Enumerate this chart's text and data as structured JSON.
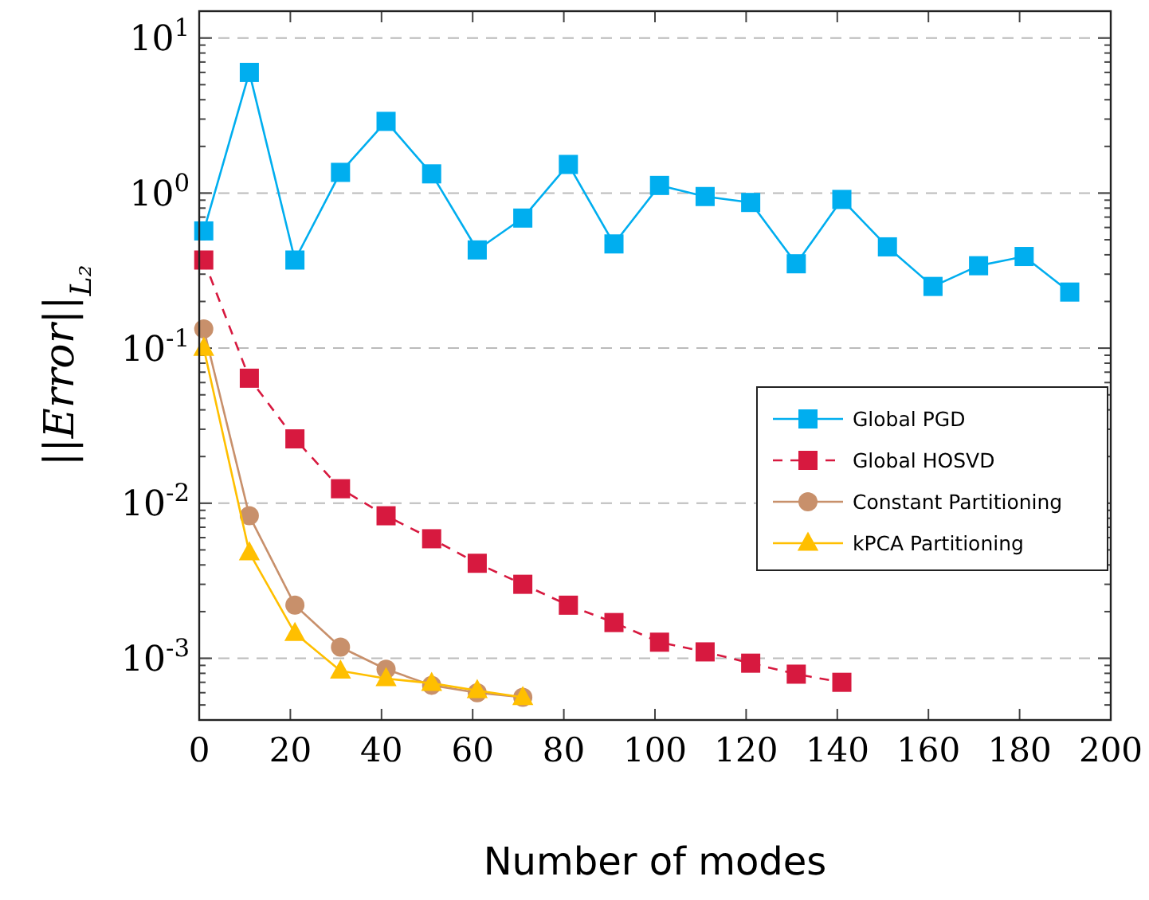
{
  "chart_data": {
    "type": "line",
    "xlabel": "Number of modes",
    "ylabel": "||Error||$_{L₂}$",
    "log": "y",
    "grid": "y",
    "legend": "right",
    "xlim": [
      0,
      200
    ],
    "xticks": [
      0,
      20,
      40,
      60,
      80,
      100,
      120,
      140,
      160,
      180,
      200
    ],
    "ylim": [
      0.0004,
      14.9
    ],
    "yticks": [
      {
        "value": 0.0004,
        "label": null
      },
      {
        "value": 0.0005,
        "label": null
      },
      {
        "value": 0.0006,
        "label": null
      },
      {
        "value": 0.0007,
        "label": null
      },
      {
        "value": 0.0008,
        "label": null
      },
      {
        "value": 0.0009,
        "label": null
      },
      {
        "value": 0.001,
        "label": "10$^{-3}$"
      },
      {
        "value": 0.002,
        "label": null
      },
      {
        "value": 0.003,
        "label": null
      },
      {
        "value": 0.004,
        "label": null
      },
      {
        "value": 0.005,
        "label": null
      },
      {
        "value": 0.006,
        "label": null
      },
      {
        "value": 0.007,
        "label": null
      },
      {
        "value": 0.008,
        "label": null
      },
      {
        "value": 0.009,
        "label": null
      },
      {
        "value": 0.01,
        "label": "10$^{-2}$"
      },
      {
        "value": 0.02,
        "label": null
      },
      {
        "value": 0.03,
        "label": null
      },
      {
        "value": 0.04,
        "label": null
      },
      {
        "value": 0.05,
        "label": null
      },
      {
        "value": 0.06,
        "label": null
      },
      {
        "value": 0.07,
        "label": null
      },
      {
        "value": 0.08,
        "label": null
      },
      {
        "value": 0.09,
        "label": null
      },
      {
        "value": 0.1,
        "label": "10$^{-1}$"
      },
      {
        "value": 0.2,
        "label": null
      },
      {
        "value": 0.3,
        "label": null
      },
      {
        "value": 0.4,
        "label": null
      },
      {
        "value": 0.5,
        "label": null
      },
      {
        "value": 0.6,
        "label": null
      },
      {
        "value": 0.7,
        "label": null
      },
      {
        "value": 0.8,
        "label": null
      },
      {
        "value": 0.9,
        "label": null
      },
      {
        "value": 1,
        "label": "10$^{0}$"
      },
      {
        "value": 2,
        "label": null
      },
      {
        "value": 3,
        "label": null
      },
      {
        "value": 4,
        "label": null
      },
      {
        "value": 5,
        "label": null
      },
      {
        "value": 6,
        "label": null
      },
      {
        "value": 7,
        "label": null
      },
      {
        "value": 8,
        "label": null
      },
      {
        "value": 9,
        "label": null
      },
      {
        "value": 10,
        "label": "10$^{1}$"
      }
    ],
    "series": [
      {
        "name": "Global PGD",
        "color": "#00aeef",
        "marker": "square",
        "line_style": "solid",
        "x": [
          1,
          11,
          21,
          31,
          41,
          51,
          61,
          71,
          81,
          91,
          101,
          111,
          121,
          131,
          141,
          151,
          161,
          171,
          181,
          191
        ],
        "values": [
          0.57,
          6.0,
          0.37,
          1.36,
          2.9,
          1.33,
          0.43,
          0.69,
          1.53,
          0.47,
          1.12,
          0.95,
          0.87,
          0.35,
          0.91,
          0.45,
          0.25,
          0.34,
          0.39,
          0.23
        ]
      },
      {
        "name": "Global HOSVD",
        "color": "#d7193f",
        "marker": "square",
        "line_style": "dashed",
        "x": [
          1,
          11,
          21,
          31,
          41,
          51,
          61,
          71,
          81,
          91,
          101,
          111,
          121,
          131,
          141
        ],
        "values": [
          0.37,
          0.064,
          0.026,
          0.0124,
          0.0083,
          0.0059,
          0.0041,
          0.003,
          0.0022,
          0.0017,
          0.00127,
          0.0011,
          0.00093,
          0.00079,
          0.0007
        ]
      },
      {
        "name": "Constant Partitioning",
        "color": "#c8906b",
        "marker": "circle",
        "line_style": "solid",
        "x": [
          1,
          11,
          21,
          31,
          41,
          51,
          61,
          71
        ],
        "values": [
          0.133,
          0.0083,
          0.0022,
          0.00118,
          0.00085,
          0.00067,
          0.0006,
          0.00056
        ]
      },
      {
        "name": "kPCA Partitioning",
        "color": "#ffbf00",
        "marker": "triangle",
        "line_style": "solid",
        "x": [
          1,
          11,
          21,
          31,
          41,
          51,
          61,
          71
        ],
        "values": [
          0.1,
          0.0048,
          0.00145,
          0.00083,
          0.00074,
          0.00069,
          0.00062,
          0.00056
        ]
      }
    ]
  }
}
